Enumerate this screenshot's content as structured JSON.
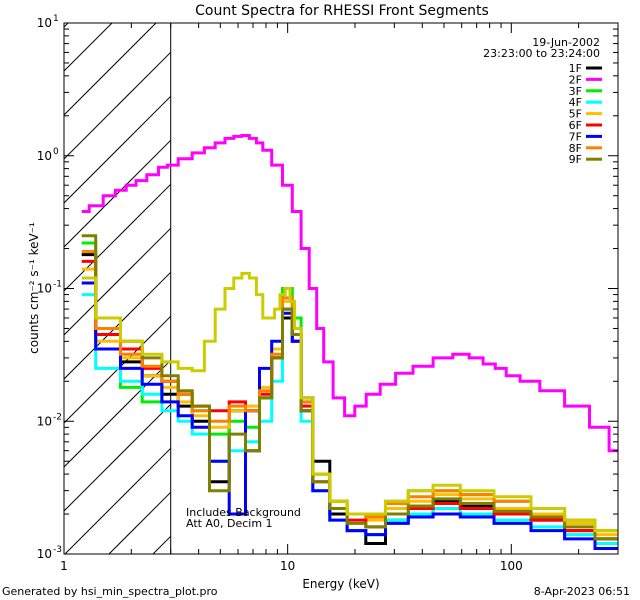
{
  "chart_data": {
    "type": "line",
    "title": "Count Spectra for RHESSI Front Segments",
    "xlabel": "Energy (keV)",
    "ylabel": "counts cm⁻² s⁻¹ keV⁻¹",
    "xscale": "log",
    "yscale": "log",
    "xlim": [
      1,
      300
    ],
    "ylim": [
      0.001,
      10
    ],
    "x_ticks": [
      {
        "value": 1,
        "label": "1"
      },
      {
        "value": 10,
        "label": "10"
      },
      {
        "value": 100,
        "label": "100"
      }
    ],
    "y_ticks": [
      {
        "value": 0.001,
        "base": "10",
        "exp": "-3"
      },
      {
        "value": 0.01,
        "base": "10",
        "exp": "-2"
      },
      {
        "value": 0.1,
        "base": "10",
        "exp": "-1"
      },
      {
        "value": 1,
        "base": "10",
        "exp": "0"
      },
      {
        "value": 10,
        "base": "10",
        "exp": "1"
      }
    ],
    "hatched_region": [
      1,
      3
    ],
    "date": "19-Jun-2002",
    "time_range": "23:23:00 to 23:24:00",
    "annotations": [
      "Includes Background",
      "Att A0, Decim 1"
    ],
    "series": [
      {
        "name": "1F",
        "color": "#000000",
        "x": [
          1.2,
          1.6,
          2.0,
          2.5,
          3.0,
          3.5,
          4.0,
          5.0,
          6.0,
          7.0,
          8.0,
          9.0,
          10.0,
          11.0,
          12.0,
          14.0,
          17.0,
          20.0,
          25.0,
          30.0,
          40.0,
          50.0,
          70.0,
          100.0,
          150.0,
          200.0,
          280.0
        ],
        "y": [
          0.18,
          0.05,
          0.028,
          0.022,
          0.016,
          0.013,
          0.01,
          0.0035,
          0.012,
          0.006,
          0.015,
          0.03,
          0.06,
          0.04,
          0.015,
          0.005,
          0.002,
          0.0015,
          0.0012,
          0.0018,
          0.002,
          0.0025,
          0.0023,
          0.002,
          0.0018,
          0.0015,
          0.0013
        ]
      },
      {
        "name": "2F",
        "color": "#ff00ff",
        "x": [
          1.2,
          1.4,
          1.6,
          1.8,
          2.0,
          2.2,
          2.5,
          2.8,
          3.0,
          3.5,
          4.0,
          4.5,
          5.0,
          5.5,
          6.0,
          6.5,
          7.0,
          7.5,
          8.0,
          9.0,
          10.0,
          11.0,
          12.0,
          13.0,
          14.0,
          15.0,
          17.0,
          19.0,
          21.0,
          24.0,
          28.0,
          33.0,
          40.0,
          50.0,
          60.0,
          70.0,
          80.0,
          90.0,
          100.0,
          120.0,
          150.0,
          200.0,
          250.0,
          300.0
        ],
        "y": [
          0.38,
          0.42,
          0.5,
          0.55,
          0.6,
          0.65,
          0.72,
          0.82,
          0.85,
          0.95,
          1.05,
          1.15,
          1.25,
          1.35,
          1.4,
          1.42,
          1.35,
          1.25,
          1.1,
          0.85,
          0.6,
          0.38,
          0.2,
          0.1,
          0.05,
          0.028,
          0.015,
          0.011,
          0.013,
          0.016,
          0.019,
          0.023,
          0.026,
          0.03,
          0.032,
          0.03,
          0.027,
          0.025,
          0.022,
          0.02,
          0.017,
          0.013,
          0.009,
          0.006
        ]
      },
      {
        "name": "3F",
        "color": "#00ee00",
        "x": [
          1.2,
          1.6,
          2.0,
          2.5,
          3.0,
          3.5,
          4.0,
          5.0,
          6.0,
          7.0,
          8.0,
          9.0,
          10.0,
          11.0,
          12.0,
          14.0,
          17.0,
          20.0,
          25.0,
          30.0,
          40.0,
          50.0,
          70.0,
          100.0,
          150.0,
          200.0,
          280.0
        ],
        "y": [
          0.22,
          0.035,
          0.018,
          0.014,
          0.02,
          0.016,
          0.012,
          0.008,
          0.01,
          0.009,
          0.015,
          0.03,
          0.1,
          0.06,
          0.012,
          0.004,
          0.0025,
          0.002,
          0.002,
          0.0025,
          0.003,
          0.003,
          0.0028,
          0.0025,
          0.002,
          0.0017,
          0.0015
        ]
      },
      {
        "name": "4F",
        "color": "#00ffff",
        "x": [
          1.2,
          1.6,
          2.0,
          2.5,
          3.0,
          3.5,
          4.0,
          5.0,
          6.0,
          7.0,
          8.0,
          9.0,
          10.0,
          11.0,
          12.0,
          14.0,
          17.0,
          20.0,
          25.0,
          30.0,
          40.0,
          50.0,
          70.0,
          100.0,
          150.0,
          200.0,
          280.0
        ],
        "y": [
          0.09,
          0.025,
          0.02,
          0.016,
          0.012,
          0.01,
          0.008,
          0.005,
          0.006,
          0.007,
          0.01,
          0.02,
          0.07,
          0.05,
          0.01,
          0.003,
          0.0018,
          0.0015,
          0.0014,
          0.0018,
          0.002,
          0.0022,
          0.002,
          0.0018,
          0.0016,
          0.0014,
          0.0012
        ]
      },
      {
        "name": "5F",
        "color": "#ffbf00",
        "x": [
          1.2,
          1.6,
          2.0,
          2.5,
          3.0,
          3.5,
          4.0,
          5.0,
          6.0,
          7.0,
          8.0,
          9.0,
          10.0,
          11.0,
          12.0,
          14.0,
          17.0,
          20.0,
          25.0,
          30.0,
          40.0,
          50.0,
          70.0,
          100.0,
          150.0,
          200.0,
          280.0
        ],
        "y": [
          0.14,
          0.04,
          0.03,
          0.022,
          0.018,
          0.014,
          0.011,
          0.009,
          0.012,
          0.013,
          0.018,
          0.035,
          0.08,
          0.05,
          0.014,
          0.004,
          0.0025,
          0.002,
          0.0018,
          0.0022,
          0.0025,
          0.0028,
          0.0026,
          0.0022,
          0.002,
          0.0017,
          0.0014
        ]
      },
      {
        "name": "6F",
        "color": "#ff0000",
        "x": [
          1.2,
          1.6,
          2.0,
          2.5,
          3.0,
          3.5,
          4.0,
          5.0,
          6.0,
          7.0,
          8.0,
          9.0,
          10.0,
          11.0,
          12.0,
          14.0,
          17.0,
          20.0,
          25.0,
          30.0,
          40.0,
          50.0,
          70.0,
          100.0,
          150.0,
          200.0,
          280.0
        ],
        "y": [
          0.16,
          0.045,
          0.035,
          0.025,
          0.02,
          0.016,
          0.013,
          0.012,
          0.014,
          0.012,
          0.016,
          0.03,
          0.07,
          0.045,
          0.013,
          0.0035,
          0.0022,
          0.0018,
          0.0016,
          0.002,
          0.0022,
          0.0024,
          0.0022,
          0.002,
          0.0018,
          0.0015,
          0.0013
        ]
      },
      {
        "name": "7F",
        "color": "#0000ff",
        "x": [
          1.2,
          1.6,
          2.0,
          2.5,
          3.0,
          3.5,
          4.0,
          5.0,
          6.0,
          7.0,
          8.0,
          9.0,
          10.0,
          11.0,
          12.0,
          14.0,
          17.0,
          20.0,
          25.0,
          30.0,
          40.0,
          50.0,
          70.0,
          100.0,
          150.0,
          200.0,
          280.0
        ],
        "y": [
          0.11,
          0.035,
          0.025,
          0.019,
          0.014,
          0.011,
          0.009,
          0.005,
          0.002,
          0.012,
          0.025,
          0.04,
          0.065,
          0.04,
          0.012,
          0.003,
          0.0018,
          0.0015,
          0.0014,
          0.0017,
          0.0019,
          0.002,
          0.0019,
          0.0017,
          0.0015,
          0.0013,
          0.0011
        ]
      },
      {
        "name": "8F",
        "color": "#ff7f00",
        "x": [
          1.2,
          1.6,
          2.0,
          2.5,
          3.0,
          3.5,
          4.0,
          5.0,
          6.0,
          7.0,
          8.0,
          9.0,
          10.0,
          11.0,
          12.0,
          14.0,
          17.0,
          20.0,
          25.0,
          30.0,
          40.0,
          50.0,
          70.0,
          100.0,
          150.0,
          200.0,
          280.0
        ],
        "y": [
          0.19,
          0.05,
          0.032,
          0.026,
          0.02,
          0.016,
          0.012,
          0.01,
          0.013,
          0.012,
          0.017,
          0.032,
          0.085,
          0.05,
          0.014,
          0.004,
          0.0025,
          0.002,
          0.0019,
          0.0024,
          0.0027,
          0.003,
          0.0028,
          0.0025,
          0.0022,
          0.0018,
          0.0015
        ]
      },
      {
        "name": "9F",
        "color": "#808000",
        "x": [
          1.2,
          1.6,
          2.0,
          2.5,
          3.0,
          3.5,
          4.0,
          5.0,
          6.0,
          7.0,
          8.0,
          9.0,
          10.0,
          11.0,
          12.0,
          14.0,
          17.0,
          20.0,
          25.0,
          30.0,
          40.0,
          50.0,
          70.0,
          100.0,
          150.0,
          200.0,
          280.0
        ],
        "y": [
          0.25,
          0.06,
          0.04,
          0.03,
          0.022,
          0.017,
          0.013,
          0.003,
          0.008,
          0.006,
          0.015,
          0.03,
          0.07,
          0.045,
          0.012,
          0.0035,
          0.0022,
          0.0017,
          0.0016,
          0.002,
          0.0023,
          0.0026,
          0.0024,
          0.0021,
          0.0019,
          0.0016,
          0.0013
        ]
      },
      {
        "name": "",
        "color": "#cccc00",
        "x": [
          1.2,
          1.6,
          2.0,
          2.5,
          3.0,
          3.5,
          4.0,
          4.5,
          5.0,
          5.5,
          6.0,
          6.5,
          7.0,
          7.5,
          8.0,
          8.5,
          9.0,
          9.5,
          10.0,
          10.5,
          11.0,
          12.0,
          14.0,
          17.0,
          20.0,
          25.0,
          30.0,
          40.0,
          50.0,
          70.0,
          100.0,
          150.0,
          200.0,
          280.0
        ],
        "y": [
          0.12,
          0.06,
          0.04,
          0.032,
          0.028,
          0.025,
          0.024,
          0.04,
          0.07,
          0.1,
          0.12,
          0.13,
          0.12,
          0.09,
          0.06,
          0.06,
          0.07,
          0.09,
          0.1,
          0.08,
          0.05,
          0.015,
          0.004,
          0.0025,
          0.002,
          0.002,
          0.0025,
          0.003,
          0.0033,
          0.003,
          0.0027,
          0.0022,
          0.0018,
          0.0015
        ]
      }
    ]
  },
  "footer": {
    "generated": "Generated by hsi_min_spectra_plot.pro",
    "timestamp": "8-Apr-2023 06:51"
  }
}
